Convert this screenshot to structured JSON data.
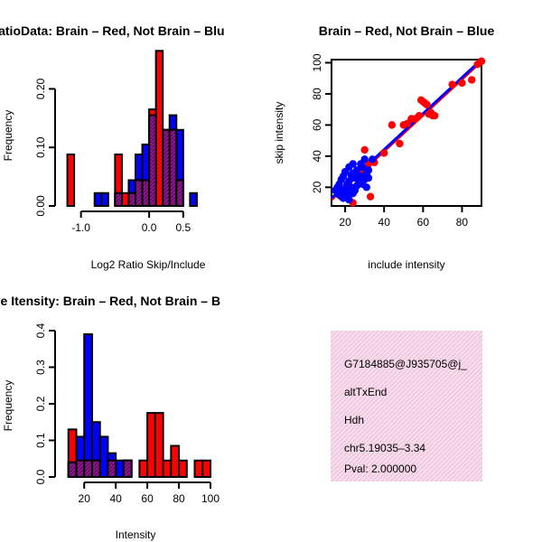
{
  "chart_data": [
    {
      "type": "histogram",
      "title": "RatioData: Brain – Red, Not Brain – Blu",
      "xlabel": "Log2 Ratio Skip/Include",
      "ylabel": "Frequency",
      "xlim": [
        -1.3,
        0.9
      ],
      "ylim": [
        0,
        0.25
      ],
      "xticks": [
        {
          "v": -1.0,
          "label": "-1.0"
        },
        {
          "v": 0.0,
          "label": "0.0"
        },
        {
          "v": 0.5,
          "label": "0.5"
        }
      ],
      "yticks": [
        {
          "v": 0.0,
          "label": "0.00"
        },
        {
          "v": 0.1,
          "label": "0.10"
        },
        {
          "v": 0.2,
          "label": "0.20"
        }
      ],
      "series": [
        {
          "name": "Not Brain",
          "color": "#0000ff",
          "bins": [
            [
              -0.8,
              -0.7,
              0.022
            ],
            [
              -0.7,
              -0.6,
              0.022
            ],
            [
              -0.5,
              -0.4,
              0.022
            ],
            [
              -0.3,
              -0.2,
              0.044
            ],
            [
              -0.2,
              -0.1,
              0.088
            ],
            [
              -0.1,
              0.0,
              0.105
            ],
            [
              0.0,
              0.1,
              0.155
            ],
            [
              0.2,
              0.3,
              0.13
            ],
            [
              0.3,
              0.4,
              0.155
            ],
            [
              0.4,
              0.5,
              0.13
            ],
            [
              0.6,
              0.7,
              0.022
            ]
          ]
        },
        {
          "name": "Brain",
          "color": "#ff0000",
          "bins": [
            [
              -1.2,
              -1.1,
              0.088
            ],
            [
              -0.5,
              -0.4,
              0.088
            ],
            [
              -0.4,
              -0.3,
              0.022
            ],
            [
              -0.3,
              -0.2,
              0.022
            ],
            [
              -0.2,
              -0.1,
              0.044
            ],
            [
              -0.1,
              0.0,
              0.044
            ],
            [
              0.0,
              0.1,
              0.165
            ],
            [
              0.1,
              0.2,
              0.265
            ],
            [
              0.2,
              0.3,
              0.13
            ],
            [
              0.3,
              0.4,
              0.13
            ],
            [
              0.4,
              0.5,
              0.044
            ]
          ]
        }
      ]
    },
    {
      "type": "scatter",
      "title": "Brain – Red, Not Brain – Blue",
      "xlabel": "include intensity",
      "ylabel": "skip intensity",
      "xlim": [
        13,
        90
      ],
      "ylim": [
        8,
        102
      ],
      "xticks": [
        {
          "v": 20,
          "label": "20"
        },
        {
          "v": 40,
          "label": "40"
        },
        {
          "v": 60,
          "label": "60"
        },
        {
          "v": 80,
          "label": "80"
        }
      ],
      "yticks": [
        {
          "v": 20,
          "label": "20"
        },
        {
          "v": 40,
          "label": "40"
        },
        {
          "v": 60,
          "label": "60"
        },
        {
          "v": 80,
          "label": "80"
        },
        {
          "v": 100,
          "label": "100"
        }
      ],
      "series": [
        {
          "name": "Brain",
          "color": "#ff0000",
          "points": [
            [
              30,
              44
            ],
            [
              32,
              35
            ],
            [
              33,
              14
            ],
            [
              24,
              10
            ],
            [
              44,
              60
            ],
            [
              48,
              48
            ],
            [
              50,
              60
            ],
            [
              52,
              61
            ],
            [
              54,
              64
            ],
            [
              56,
              64
            ],
            [
              58,
              66
            ],
            [
              59,
              76
            ],
            [
              60,
              75
            ],
            [
              61,
              74
            ],
            [
              62,
              73
            ],
            [
              63,
              67
            ],
            [
              64,
              68
            ],
            [
              65,
              66
            ],
            [
              66,
              66
            ],
            [
              75,
              86
            ],
            [
              80,
              87
            ],
            [
              85,
              89
            ],
            [
              88,
              99
            ],
            [
              90,
              101
            ],
            [
              35,
              36
            ],
            [
              40,
              42
            ],
            [
              28,
              30
            ],
            [
              18,
              14
            ]
          ],
          "fit": [
            [
              13,
              12
            ],
            [
              90,
              101
            ]
          ]
        },
        {
          "name": "Not Brain",
          "color": "#0000ff",
          "points": [
            [
              15,
              18
            ],
            [
              16,
              20
            ],
            [
              17,
              22
            ],
            [
              18,
              25
            ],
            [
              19,
              27
            ],
            [
              20,
              30
            ],
            [
              20,
              19
            ],
            [
              21,
              22
            ],
            [
              22,
              24
            ],
            [
              22,
              33
            ],
            [
              23,
              20
            ],
            [
              23,
              28
            ],
            [
              24,
              29
            ],
            [
              24,
              35
            ],
            [
              25,
              18
            ],
            [
              25,
              26
            ],
            [
              26,
              31
            ],
            [
              27,
              24
            ],
            [
              28,
              27
            ],
            [
              29,
              22
            ],
            [
              29,
              33
            ],
            [
              30,
              25
            ],
            [
              30,
              38
            ],
            [
              31,
              29
            ],
            [
              31,
              20
            ],
            [
              32,
              26
            ],
            [
              32,
              31
            ],
            [
              21,
              16
            ],
            [
              19,
              13
            ],
            [
              17,
              15
            ],
            [
              26,
              21
            ],
            [
              28,
              35
            ],
            [
              34,
              38
            ],
            [
              24,
              16
            ],
            [
              22,
              12
            ],
            [
              18,
              17
            ]
          ],
          "fit": [
            [
              13,
              13
            ],
            [
              90,
              102
            ]
          ]
        }
      ]
    },
    {
      "type": "histogram",
      "title": "ne Itensity: Brain – Red, Not Brain – B",
      "xlabel": "Intensity",
      "ylabel": "Frequency",
      "xlim": [
        5,
        100
      ],
      "ylim": [
        0,
        0.4
      ],
      "xticks": [
        {
          "v": 20,
          "label": "20"
        },
        {
          "v": 40,
          "label": "40"
        },
        {
          "v": 60,
          "label": "60"
        },
        {
          "v": 80,
          "label": "80"
        },
        {
          "v": 100,
          "label": "100"
        }
      ],
      "yticks": [
        {
          "v": 0.0,
          "label": "0.0"
        },
        {
          "v": 0.1,
          "label": "0.1"
        },
        {
          "v": 0.2,
          "label": "0.2"
        },
        {
          "v": 0.3,
          "label": "0.3"
        },
        {
          "v": 0.4,
          "label": "0.4"
        }
      ],
      "series": [
        {
          "name": "Not Brain",
          "color": "#0000ff",
          "bins": [
            [
              10,
              15,
              0.04
            ],
            [
              15,
              20,
              0.11
            ],
            [
              20,
              25,
              0.39
            ],
            [
              25,
              30,
              0.15
            ],
            [
              30,
              35,
              0.11
            ],
            [
              35,
              40,
              0.065
            ],
            [
              40,
              45,
              0.045
            ],
            [
              45,
              50,
              0.045
            ]
          ]
        },
        {
          "name": "Brain",
          "color": "#ff0000",
          "bins": [
            [
              10,
              15,
              0.13
            ],
            [
              15,
              20,
              0.045
            ],
            [
              20,
              25,
              0.045
            ],
            [
              25,
              30,
              0.045
            ],
            [
              35,
              40,
              0.045
            ],
            [
              45,
              50,
              0.045
            ],
            [
              55,
              60,
              0.045
            ],
            [
              60,
              65,
              0.175
            ],
            [
              65,
              70,
              0.175
            ],
            [
              70,
              75,
              0.045
            ],
            [
              75,
              80,
              0.085
            ],
            [
              80,
              85,
              0.045
            ],
            [
              90,
              95,
              0.045
            ],
            [
              95,
              100,
              0.045
            ]
          ]
        }
      ]
    }
  ],
  "info": {
    "id": "G7184885@J935705@j_",
    "event": "altTxEnd",
    "gene": "Hdh",
    "location": "chr5.19035–3.34",
    "pval": "Pval: 2.000000",
    "pval_color": "#8b0000",
    "box_color": "#f7dcec"
  }
}
